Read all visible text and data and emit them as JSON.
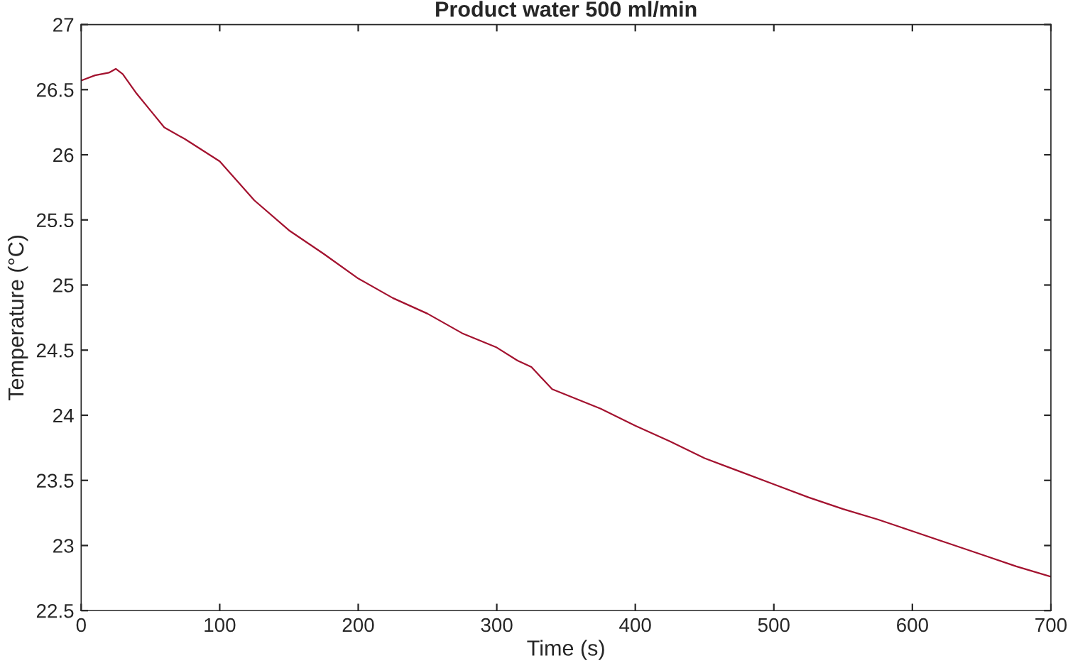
{
  "chart_data": {
    "type": "line",
    "title": "Product water 500 ml/min",
    "xlabel": "Time (s)",
    "ylabel": "Temperature (°C)",
    "x": [
      0,
      10,
      20,
      25,
      30,
      40,
      50,
      60,
      75,
      100,
      125,
      150,
      175,
      200,
      225,
      250,
      275,
      300,
      315,
      325,
      340,
      375,
      400,
      425,
      450,
      475,
      500,
      525,
      550,
      575,
      600,
      625,
      650,
      675,
      700
    ],
    "series": [
      {
        "color": "#a3122f",
        "values": [
          26.57,
          26.61,
          26.63,
          26.66,
          26.62,
          26.47,
          26.34,
          26.21,
          26.12,
          25.95,
          25.65,
          25.42,
          25.24,
          25.05,
          24.9,
          24.78,
          24.63,
          24.52,
          24.42,
          24.37,
          24.2,
          24.05,
          23.92,
          23.8,
          23.67,
          23.57,
          23.47,
          23.37,
          23.28,
          23.2,
          23.11,
          23.02,
          22.93,
          22.84,
          22.76
        ]
      }
    ],
    "xlim": [
      0,
      700
    ],
    "xticks": [
      0,
      100,
      200,
      300,
      400,
      500,
      600,
      700
    ],
    "ylim": [
      22.5,
      27
    ],
    "yticks": [
      22.5,
      23,
      23.5,
      24,
      24.5,
      25,
      25.5,
      26,
      26.5,
      27
    ],
    "marker": "none",
    "line_style": "solid"
  }
}
